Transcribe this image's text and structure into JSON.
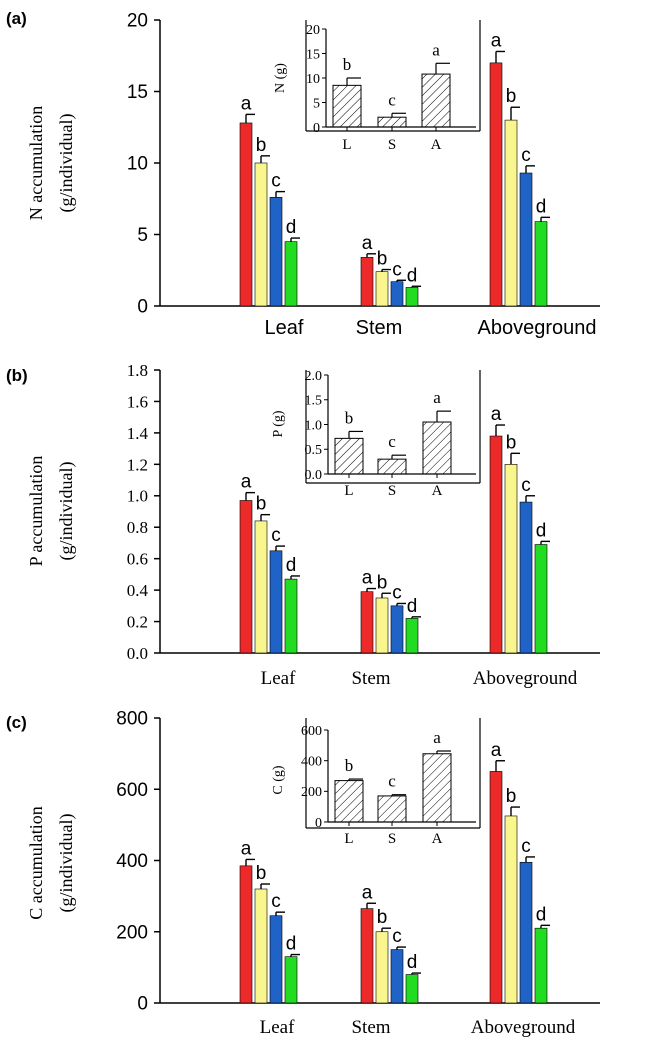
{
  "figure": {
    "colors": {
      "bars": [
        "#ed2a2a",
        "#f8f68c",
        "#1f63c6",
        "#22dc22"
      ],
      "axis": "#000000",
      "inset_fill": "#ffffff"
    }
  },
  "chart_data": [
    {
      "type": "bar",
      "panel_label": "(a)",
      "title": "",
      "ylabel": [
        "N accumulation",
        "(g/individual)"
      ],
      "xlabel": "",
      "ylim": [
        0,
        20
      ],
      "yticks": [
        "0",
        "5",
        "10",
        "15",
        "20"
      ],
      "categories": [
        "Leaf",
        "Stem",
        "Aboveground"
      ],
      "series": [
        {
          "values": [
            12.8,
            3.4,
            17.0
          ],
          "errors": [
            0.6,
            0.25,
            0.8
          ],
          "letters": [
            "a",
            "a",
            "a"
          ]
        },
        {
          "values": [
            10.0,
            2.4,
            13.0
          ],
          "errors": [
            0.5,
            0.15,
            0.9
          ],
          "letters": [
            "b",
            "b",
            "b"
          ]
        },
        {
          "values": [
            7.6,
            1.7,
            9.3
          ],
          "errors": [
            0.4,
            0.1,
            0.5
          ],
          "letters": [
            "c",
            "c",
            "c"
          ]
        },
        {
          "values": [
            4.5,
            1.3,
            5.9
          ],
          "errors": [
            0.25,
            0.08,
            0.3
          ],
          "letters": [
            "d",
            "d",
            "d"
          ]
        }
      ],
      "inset": {
        "type": "bar",
        "ylabel": "N (g)",
        "ylim": [
          0,
          20
        ],
        "yticks": [
          "0",
          "5",
          "10",
          "15",
          "20"
        ],
        "categories": [
          "L",
          "S",
          "A"
        ],
        "values": [
          8.5,
          2.0,
          10.8
        ],
        "errors": [
          1.5,
          0.8,
          2.2
        ],
        "letters": [
          "b",
          "c",
          "a"
        ]
      }
    },
    {
      "type": "bar",
      "panel_label": "(b)",
      "title": "",
      "ylabel": [
        "P accumulation",
        "(g/individual)"
      ],
      "xlabel": "",
      "ylim": [
        0,
        1.8
      ],
      "yticks": [
        "0.0",
        "0.2",
        "0.4",
        "0.6",
        "0.8",
        "1.0",
        "1.2",
        "1.4",
        "1.6",
        "1.8"
      ],
      "categories": [
        "Leaf",
        "Stem",
        "Aboveground"
      ],
      "series": [
        {
          "values": [
            0.97,
            0.39,
            1.38
          ],
          "errors": [
            0.05,
            0.02,
            0.07
          ],
          "letters": [
            "a",
            "a",
            "a"
          ]
        },
        {
          "values": [
            0.84,
            0.35,
            1.2
          ],
          "errors": [
            0.04,
            0.03,
            0.07
          ],
          "letters": [
            "b",
            "b",
            "b"
          ]
        },
        {
          "values": [
            0.65,
            0.3,
            0.96
          ],
          "errors": [
            0.03,
            0.015,
            0.04
          ],
          "letters": [
            "c",
            "c",
            "c"
          ]
        },
        {
          "values": [
            0.47,
            0.22,
            0.69
          ],
          "errors": [
            0.02,
            0.01,
            0.02
          ],
          "letters": [
            "d",
            "d",
            "d"
          ]
        }
      ],
      "inset": {
        "type": "bar",
        "ylabel": "P (g)",
        "ylim": [
          0,
          2.0
        ],
        "yticks": [
          "0.0",
          "0.5",
          "1.0",
          "1.5",
          "2.0"
        ],
        "categories": [
          "L",
          "S",
          "A"
        ],
        "values": [
          0.72,
          0.3,
          1.05
        ],
        "errors": [
          0.14,
          0.08,
          0.22
        ],
        "letters": [
          "b",
          "c",
          "a"
        ]
      }
    },
    {
      "type": "bar",
      "panel_label": "(c)",
      "title": "",
      "ylabel": [
        "C accumulation",
        "(g/individual)"
      ],
      "xlabel": "",
      "ylim": [
        0,
        800
      ],
      "yticks": [
        "0",
        "200",
        "400",
        "600",
        "800"
      ],
      "categories": [
        "Leaf",
        "Stem",
        "Aboveground"
      ],
      "series": [
        {
          "values": [
            385,
            265,
            650
          ],
          "errors": [
            18,
            15,
            30
          ],
          "letters": [
            "a",
            "a",
            "a"
          ]
        },
        {
          "values": [
            320,
            200,
            525
          ],
          "errors": [
            14,
            10,
            25
          ],
          "letters": [
            "b",
            "b",
            "b"
          ]
        },
        {
          "values": [
            245,
            150,
            395
          ],
          "errors": [
            10,
            7,
            15
          ],
          "letters": [
            "c",
            "c",
            "c"
          ]
        },
        {
          "values": [
            130,
            80,
            210
          ],
          "errors": [
            6,
            4,
            8
          ],
          "letters": [
            "d",
            "d",
            "d"
          ]
        }
      ],
      "inset": {
        "type": "bar",
        "ylabel": "C (g)",
        "ylim": [
          0,
          600
        ],
        "yticks": [
          "0",
          "200",
          "400",
          "600"
        ],
        "categories": [
          "L",
          "S",
          "A"
        ],
        "values": [
          270,
          170,
          445
        ],
        "errors": [
          10,
          8,
          18
        ],
        "letters": [
          "b",
          "c",
          "a"
        ]
      }
    }
  ]
}
